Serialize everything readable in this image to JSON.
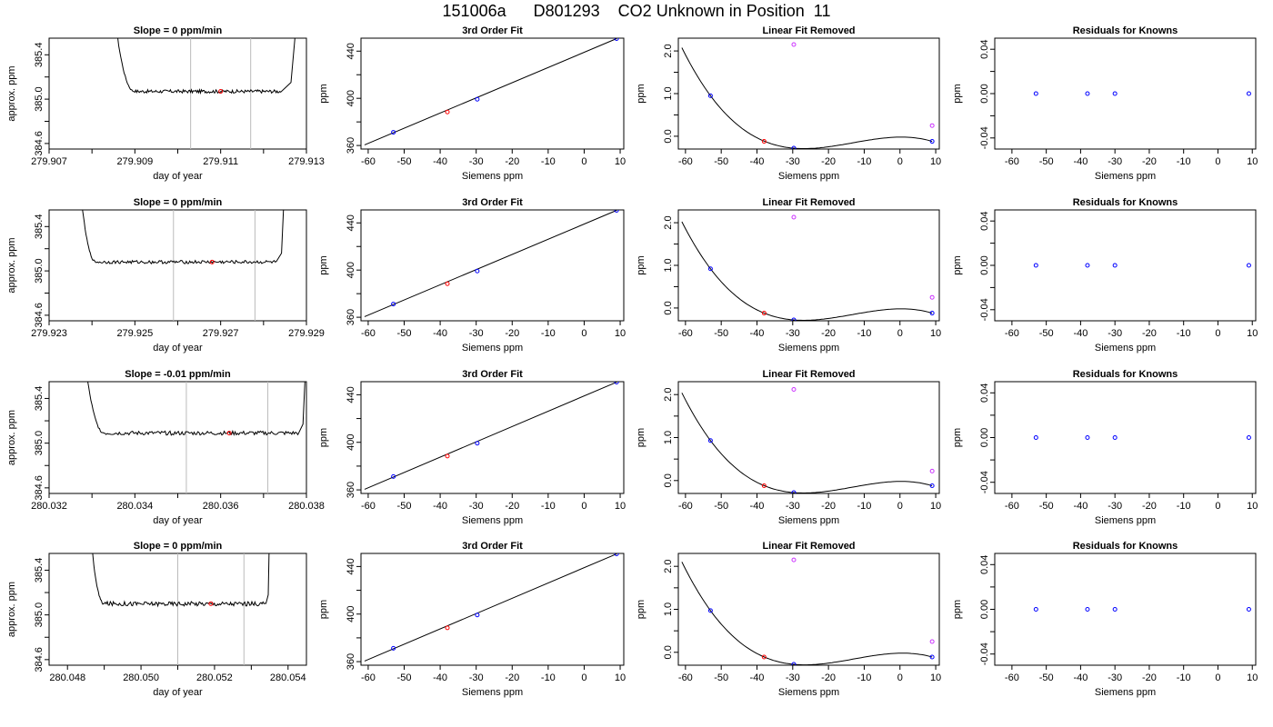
{
  "title": "151006a      D801293    CO2 Unknown in Position  11",
  "colors": {
    "trace": "#000000",
    "known": "#0000ff",
    "unknown": "#ff0000",
    "flag": "#cc33ff",
    "marker": "#bbbbbb"
  },
  "chart_data": [
    {
      "type": "line",
      "row": 1,
      "col": 1,
      "title": "Slope =  0  ppm/min",
      "xlabel": "day of year",
      "ylabel": "approx. ppm",
      "xlim": [
        279.907,
        279.913
      ],
      "ylim": [
        384.55,
        385.55
      ],
      "xticks": [
        279.907,
        279.908,
        279.909,
        279.91,
        279.911,
        279.912,
        279.913
      ],
      "xtick_labels": [
        "279.907",
        "",
        "279.909",
        "",
        "279.911",
        "",
        "279.913"
      ],
      "yticks": [
        384.6,
        384.8,
        385.0,
        385.2,
        385.4
      ],
      "ytick_labels": [
        "384.6",
        "",
        "385.0",
        "",
        "385.4"
      ],
      "trace": {
        "x_start": 279.9085,
        "x_plateau": 279.909,
        "x_plateau_end": 279.9124,
        "x_end": 279.9128,
        "level": 385.07,
        "noise": 0.015
      },
      "markers": [
        279.9103,
        279.9117
      ],
      "point": {
        "x": 279.911,
        "y": 385.07
      }
    },
    {
      "type": "scatter",
      "row": 1,
      "col": 2,
      "title": "3rd Order Fit",
      "xlabel": "Siemens ppm",
      "ylabel": "ppm",
      "xlim": [
        -62,
        11
      ],
      "ylim": [
        357,
        451
      ],
      "xticks": [
        -60,
        -50,
        -40,
        -30,
        -20,
        -10,
        0,
        10
      ],
      "yticks": [
        360,
        380,
        400,
        420,
        440
      ],
      "ytick_labels": [
        "360",
        "",
        "400",
        "",
        "440"
      ],
      "line": [
        [
          -61,
          360.5
        ],
        [
          9,
          450.6
        ]
      ],
      "points": [
        {
          "x": -53,
          "y": 371.2,
          "c": "known"
        },
        {
          "x": -38,
          "y": 388.4,
          "c": "unknown"
        },
        {
          "x": -29.7,
          "y": 399.2,
          "c": "known"
        },
        {
          "x": 9,
          "y": 450.6,
          "c": "known"
        }
      ]
    },
    {
      "type": "line",
      "row": 1,
      "col": 3,
      "title": "Linear Fit Removed",
      "xlabel": "Siemens ppm",
      "ylabel": "ppm",
      "xlim": [
        -62,
        11
      ],
      "ylim": [
        -0.3,
        2.3
      ],
      "xticks": [
        -60,
        -50,
        -40,
        -30,
        -20,
        -10,
        0,
        10
      ],
      "yticks": [
        0.0,
        0.5,
        1.0,
        1.5,
        2.0
      ],
      "ytick_labels": [
        "0.0",
        "",
        "1.0",
        "",
        "2.0"
      ],
      "curve": {
        "x1": -53,
        "y1": 0.95,
        "x2": -29.7,
        "y2": -0.28,
        "x3": 0,
        "y3": -0.02,
        "x4": 9,
        "y4": -0.12,
        "from": -61,
        "to": 9
      },
      "points": [
        {
          "x": -53,
          "y": 0.95,
          "c": "known"
        },
        {
          "x": -38,
          "y": -0.12,
          "c": "unknown"
        },
        {
          "x": -29.7,
          "y": -0.28,
          "c": "known"
        },
        {
          "x": 9,
          "y": -0.12,
          "c": "known"
        },
        {
          "x": -29.7,
          "y": 2.15,
          "c": "flag"
        },
        {
          "x": 9,
          "y": 0.25,
          "c": "flag"
        }
      ]
    },
    {
      "type": "scatter",
      "row": 1,
      "col": 4,
      "title": "Residuals for Knowns",
      "xlabel": "Siemens ppm",
      "ylabel": "ppm",
      "xlim": [
        -65,
        11
      ],
      "ylim": [
        -0.05,
        0.05
      ],
      "xticks": [
        -60,
        -50,
        -40,
        -30,
        -20,
        -10,
        0,
        10
      ],
      "yticks": [
        -0.04,
        -0.02,
        0.0,
        0.02,
        0.04
      ],
      "ytick_labels": [
        "-0.04",
        "",
        "0.00",
        "",
        "0.04"
      ],
      "points": [
        {
          "x": -53,
          "y": 0,
          "c": "known"
        },
        {
          "x": -38,
          "y": 0,
          "c": "known"
        },
        {
          "x": -30,
          "y": 0,
          "c": "known"
        },
        {
          "x": 9,
          "y": 0,
          "c": "known"
        }
      ]
    },
    {
      "type": "line",
      "row": 2,
      "col": 1,
      "title": "Slope =  0  ppm/min",
      "xlabel": "day of year",
      "ylabel": "approx. ppm",
      "xlim": [
        279.923,
        279.929
      ],
      "ylim": [
        384.55,
        385.55
      ],
      "xticks": [
        279.923,
        279.924,
        279.925,
        279.926,
        279.927,
        279.928,
        279.929
      ],
      "xtick_labels": [
        "279.923",
        "",
        "279.925",
        "",
        "279.927",
        "",
        "279.929"
      ],
      "yticks": [
        384.6,
        384.8,
        385.0,
        385.2,
        385.4
      ],
      "ytick_labels": [
        "384.6",
        "",
        "385.0",
        "",
        "385.4"
      ],
      "trace": {
        "x_start": 279.9237,
        "x_plateau": 279.9241,
        "x_plateau_end": 279.9283,
        "x_end": 279.9285,
        "level": 385.08,
        "noise": 0.015
      },
      "markers": [
        279.9259,
        279.9278
      ],
      "point": {
        "x": 279.9268,
        "y": 385.08
      }
    },
    {
      "type": "scatter",
      "row": 2,
      "col": 2,
      "title": "3rd Order Fit",
      "xlabel": "Siemens ppm",
      "ylabel": "ppm",
      "xlim": [
        -62,
        11
      ],
      "ylim": [
        357,
        451
      ],
      "xticks": [
        -60,
        -50,
        -40,
        -30,
        -20,
        -10,
        0,
        10
      ],
      "yticks": [
        360,
        380,
        400,
        420,
        440
      ],
      "ytick_labels": [
        "360",
        "",
        "400",
        "",
        "440"
      ],
      "line": [
        [
          -61,
          360.5
        ],
        [
          9,
          450.6
        ]
      ],
      "points": [
        {
          "x": -53,
          "y": 371.2,
          "c": "known"
        },
        {
          "x": -38,
          "y": 388.4,
          "c": "unknown"
        },
        {
          "x": -29.7,
          "y": 399.2,
          "c": "known"
        },
        {
          "x": 9,
          "y": 450.6,
          "c": "known"
        }
      ]
    },
    {
      "type": "line",
      "row": 2,
      "col": 3,
      "title": "Linear Fit Removed",
      "xlabel": "Siemens ppm",
      "ylabel": "ppm",
      "xlim": [
        -62,
        11
      ],
      "ylim": [
        -0.3,
        2.3
      ],
      "xticks": [
        -60,
        -50,
        -40,
        -30,
        -20,
        -10,
        0,
        10
      ],
      "yticks": [
        0.0,
        0.5,
        1.0,
        1.5,
        2.0
      ],
      "ytick_labels": [
        "0.0",
        "",
        "1.0",
        "",
        "2.0"
      ],
      "curve": {
        "x1": -53,
        "y1": 0.92,
        "x2": -29.7,
        "y2": -0.28,
        "x3": 0,
        "y3": -0.02,
        "x4": 9,
        "y4": -0.12,
        "from": -61,
        "to": 9
      },
      "points": [
        {
          "x": -53,
          "y": 0.92,
          "c": "known"
        },
        {
          "x": -38,
          "y": -0.12,
          "c": "unknown"
        },
        {
          "x": -29.7,
          "y": -0.28,
          "c": "known"
        },
        {
          "x": 9,
          "y": -0.12,
          "c": "known"
        },
        {
          "x": -29.7,
          "y": 2.13,
          "c": "flag"
        },
        {
          "x": 9,
          "y": 0.25,
          "c": "flag"
        }
      ]
    },
    {
      "type": "scatter",
      "row": 2,
      "col": 4,
      "title": "Residuals for Knowns",
      "xlabel": "Siemens ppm",
      "ylabel": "ppm",
      "xlim": [
        -65,
        11
      ],
      "ylim": [
        -0.05,
        0.05
      ],
      "xticks": [
        -60,
        -50,
        -40,
        -30,
        -20,
        -10,
        0,
        10
      ],
      "yticks": [
        -0.04,
        -0.02,
        0.0,
        0.02,
        0.04
      ],
      "ytick_labels": [
        "-0.04",
        "",
        "0.00",
        "",
        "0.04"
      ],
      "points": [
        {
          "x": -53,
          "y": 0,
          "c": "known"
        },
        {
          "x": -38,
          "y": 0,
          "c": "known"
        },
        {
          "x": -30,
          "y": 0,
          "c": "known"
        },
        {
          "x": 9,
          "y": 0,
          "c": "known"
        }
      ]
    },
    {
      "type": "line",
      "row": 3,
      "col": 1,
      "title": "Slope =  -0.01  ppm/min",
      "xlabel": "day of year",
      "ylabel": "approx. ppm",
      "xlim": [
        280.032,
        280.038
      ],
      "ylim": [
        384.55,
        385.55
      ],
      "xticks": [
        280.032,
        280.033,
        280.034,
        280.035,
        280.036,
        280.037,
        280.038
      ],
      "xtick_labels": [
        "280.032",
        "",
        "280.034",
        "",
        "280.036",
        "",
        "280.038"
      ],
      "yticks": [
        384.6,
        384.8,
        385.0,
        385.2,
        385.4
      ],
      "ytick_labels": [
        "384.6",
        "",
        "385.0",
        "",
        "385.4"
      ],
      "trace": {
        "x_start": 280.0328,
        "x_plateau": 280.0333,
        "x_plateau_end": 280.0378,
        "x_end": 280.038,
        "level": 385.09,
        "noise": 0.018
      },
      "markers": [
        280.0352,
        280.0371
      ],
      "point": {
        "x": 280.0362,
        "y": 385.09
      }
    },
    {
      "type": "scatter",
      "row": 3,
      "col": 2,
      "title": "3rd Order Fit",
      "xlabel": "Siemens ppm",
      "ylabel": "ppm",
      "xlim": [
        -62,
        11
      ],
      "ylim": [
        357,
        451
      ],
      "xticks": [
        -60,
        -50,
        -40,
        -30,
        -20,
        -10,
        0,
        10
      ],
      "yticks": [
        360,
        380,
        400,
        420,
        440
      ],
      "ytick_labels": [
        "360",
        "",
        "400",
        "",
        "440"
      ],
      "line": [
        [
          -61,
          360.5
        ],
        [
          9,
          450.6
        ]
      ],
      "points": [
        {
          "x": -53,
          "y": 371.2,
          "c": "known"
        },
        {
          "x": -38,
          "y": 388.4,
          "c": "unknown"
        },
        {
          "x": -29.7,
          "y": 399.2,
          "c": "known"
        },
        {
          "x": 9,
          "y": 450.6,
          "c": "known"
        }
      ]
    },
    {
      "type": "line",
      "row": 3,
      "col": 3,
      "title": "Linear Fit Removed",
      "xlabel": "Siemens ppm",
      "ylabel": "ppm",
      "xlim": [
        -62,
        11
      ],
      "ylim": [
        -0.3,
        2.3
      ],
      "xticks": [
        -60,
        -50,
        -40,
        -30,
        -20,
        -10,
        0,
        10
      ],
      "yticks": [
        0.0,
        0.5,
        1.0,
        1.5,
        2.0
      ],
      "ytick_labels": [
        "0.0",
        "",
        "1.0",
        "",
        "2.0"
      ],
      "curve": {
        "x1": -53,
        "y1": 0.93,
        "x2": -29.7,
        "y2": -0.28,
        "x3": 0,
        "y3": -0.02,
        "x4": 9,
        "y4": -0.12,
        "from": -61,
        "to": 9
      },
      "points": [
        {
          "x": -53,
          "y": 0.93,
          "c": "known"
        },
        {
          "x": -38,
          "y": -0.12,
          "c": "unknown"
        },
        {
          "x": -29.7,
          "y": -0.28,
          "c": "known"
        },
        {
          "x": 9,
          "y": -0.12,
          "c": "known"
        },
        {
          "x": -29.7,
          "y": 2.12,
          "c": "flag"
        },
        {
          "x": 9,
          "y": 0.22,
          "c": "flag"
        }
      ]
    },
    {
      "type": "scatter",
      "row": 3,
      "col": 4,
      "title": "Residuals for Knowns",
      "xlabel": "Siemens ppm",
      "ylabel": "ppm",
      "xlim": [
        -65,
        11
      ],
      "ylim": [
        -0.05,
        0.05
      ],
      "xticks": [
        -60,
        -50,
        -40,
        -30,
        -20,
        -10,
        0,
        10
      ],
      "yticks": [
        -0.04,
        -0.02,
        0.0,
        0.02,
        0.04
      ],
      "ytick_labels": [
        "-0.04",
        "",
        "0.00",
        "",
        "0.04"
      ],
      "points": [
        {
          "x": -53,
          "y": 0,
          "c": "known"
        },
        {
          "x": -38,
          "y": 0,
          "c": "known"
        },
        {
          "x": -30,
          "y": 0,
          "c": "known"
        },
        {
          "x": 9,
          "y": 0,
          "c": "known"
        }
      ]
    },
    {
      "type": "line",
      "row": 4,
      "col": 1,
      "title": "Slope =  0  ppm/min",
      "xlabel": "day of year",
      "ylabel": "approx. ppm",
      "xlim": [
        280.0475,
        280.0545
      ],
      "ylim": [
        384.55,
        385.55
      ],
      "xticks": [
        280.048,
        280.049,
        280.05,
        280.051,
        280.052,
        280.053,
        280.054
      ],
      "xtick_labels": [
        "280.048",
        "",
        "280.050",
        "",
        "280.052",
        "",
        "280.054"
      ],
      "yticks": [
        384.6,
        384.8,
        385.0,
        385.2,
        385.4
      ],
      "ytick_labels": [
        "384.6",
        "",
        "385.0",
        "",
        "385.4"
      ],
      "trace": {
        "x_start": 280.0486,
        "x_plateau": 280.049,
        "x_plateau_end": 280.0534,
        "x_end": 280.0535,
        "level": 385.1,
        "noise": 0.02
      },
      "markers": [
        280.051,
        280.0528
      ],
      "point": {
        "x": 280.0519,
        "y": 385.1
      }
    },
    {
      "type": "scatter",
      "row": 4,
      "col": 2,
      "title": "3rd Order Fit",
      "xlabel": "Siemens ppm",
      "ylabel": "ppm",
      "xlim": [
        -62,
        11
      ],
      "ylim": [
        357,
        451
      ],
      "xticks": [
        -60,
        -50,
        -40,
        -30,
        -20,
        -10,
        0,
        10
      ],
      "yticks": [
        360,
        380,
        400,
        420,
        440
      ],
      "ytick_labels": [
        "360",
        "",
        "400",
        "",
        "440"
      ],
      "line": [
        [
          -61,
          360.5
        ],
        [
          9,
          450.6
        ]
      ],
      "points": [
        {
          "x": -53,
          "y": 371.2,
          "c": "known"
        },
        {
          "x": -38,
          "y": 388.4,
          "c": "unknown"
        },
        {
          "x": -29.7,
          "y": 399.2,
          "c": "known"
        },
        {
          "x": 9,
          "y": 450.6,
          "c": "known"
        }
      ]
    },
    {
      "type": "line",
      "row": 4,
      "col": 3,
      "title": "Linear Fit Removed",
      "xlabel": "Siemens ppm",
      "ylabel": "ppm",
      "xlim": [
        -62,
        11
      ],
      "ylim": [
        -0.3,
        2.3
      ],
      "xticks": [
        -60,
        -50,
        -40,
        -30,
        -20,
        -10,
        0,
        10
      ],
      "yticks": [
        0.0,
        0.5,
        1.0,
        1.5,
        2.0
      ],
      "ytick_labels": [
        "0.0",
        "",
        "1.0",
        "",
        "2.0"
      ],
      "curve": {
        "x1": -53,
        "y1": 0.97,
        "x2": -29.7,
        "y2": -0.28,
        "x3": 0,
        "y3": -0.02,
        "x4": 9,
        "y4": -0.11,
        "from": -61,
        "to": 9
      },
      "points": [
        {
          "x": -53,
          "y": 0.97,
          "c": "known"
        },
        {
          "x": -38,
          "y": -0.11,
          "c": "unknown"
        },
        {
          "x": -29.7,
          "y": -0.28,
          "c": "known"
        },
        {
          "x": 9,
          "y": -0.11,
          "c": "known"
        },
        {
          "x": -29.7,
          "y": 2.15,
          "c": "flag"
        },
        {
          "x": 9,
          "y": 0.25,
          "c": "flag"
        }
      ]
    },
    {
      "type": "scatter",
      "row": 4,
      "col": 4,
      "title": "Residuals for Knowns",
      "xlabel": "Siemens ppm",
      "ylabel": "ppm",
      "xlim": [
        -65,
        11
      ],
      "ylim": [
        -0.05,
        0.05
      ],
      "xticks": [
        -60,
        -50,
        -40,
        -30,
        -20,
        -10,
        0,
        10
      ],
      "yticks": [
        -0.04,
        -0.02,
        0.0,
        0.02,
        0.04
      ],
      "ytick_labels": [
        "-0.04",
        "",
        "0.00",
        "",
        "0.04"
      ],
      "points": [
        {
          "x": -53,
          "y": 0,
          "c": "known"
        },
        {
          "x": -38,
          "y": 0,
          "c": "known"
        },
        {
          "x": -30,
          "y": 0,
          "c": "known"
        },
        {
          "x": 9,
          "y": 0,
          "c": "known"
        }
      ]
    }
  ]
}
